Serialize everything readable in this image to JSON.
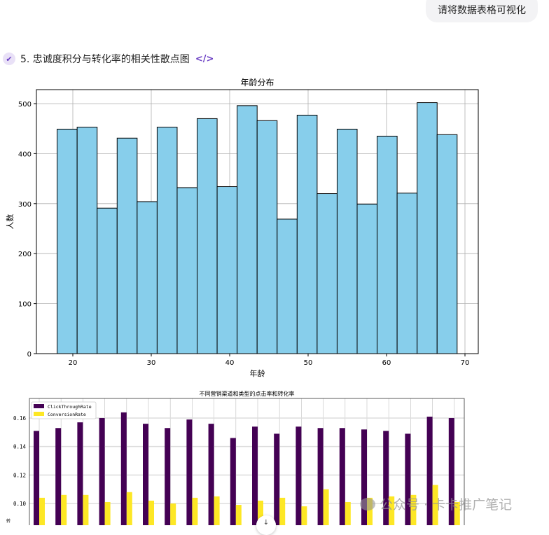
{
  "user_message": "请将数据表格可视化",
  "step": {
    "label": "5. 忠诚度积分与转化率的相关性散点图",
    "code_icon": "</>"
  },
  "watermark": "公众号 · 卡卡推广笔记",
  "chart_data": [
    {
      "type": "bar",
      "title": "年龄分布",
      "xlabel": "年龄",
      "ylabel": "人数",
      "bin_start": 18,
      "bin_end": 69,
      "values": [
        449,
        453,
        291,
        431,
        304,
        453,
        332,
        470,
        334,
        496,
        466,
        269,
        477,
        320,
        449,
        299,
        435,
        321,
        502,
        438
      ],
      "xticks": [
        20,
        30,
        40,
        50,
        60,
        70
      ],
      "yticks": [
        0,
        100,
        200,
        300,
        400,
        500
      ],
      "xlim": [
        13.4,
        71.6
      ],
      "ylim": [
        0,
        528
      ],
      "grid": true,
      "color": "#87ceeb"
    },
    {
      "type": "bar",
      "title": "不同营销渠道和类型的点击率和转化率",
      "ylabel": "转",
      "legend": "top-left",
      "series": [
        {
          "name": "ClickThroughRate",
          "color": "#440154",
          "values": [
            0.151,
            0.153,
            0.157,
            0.16,
            0.164,
            0.156,
            0.153,
            0.159,
            0.156,
            0.146,
            0.154,
            0.149,
            0.154,
            0.153,
            0.153,
            0.152,
            0.151,
            0.149,
            0.161,
            0.16
          ]
        },
        {
          "name": "ConversionRate",
          "color": "#fde725",
          "values": [
            0.104,
            0.106,
            0.106,
            0.101,
            0.108,
            0.102,
            0.1,
            0.104,
            0.105,
            0.099,
            0.102,
            0.104,
            0.098,
            0.11,
            0.101,
            0.104,
            0.105,
            0.106,
            0.113,
            0.101
          ]
        }
      ],
      "yticks": [
        "0.10",
        "0.12",
        "0.14",
        "0.16"
      ],
      "grid": true
    }
  ]
}
